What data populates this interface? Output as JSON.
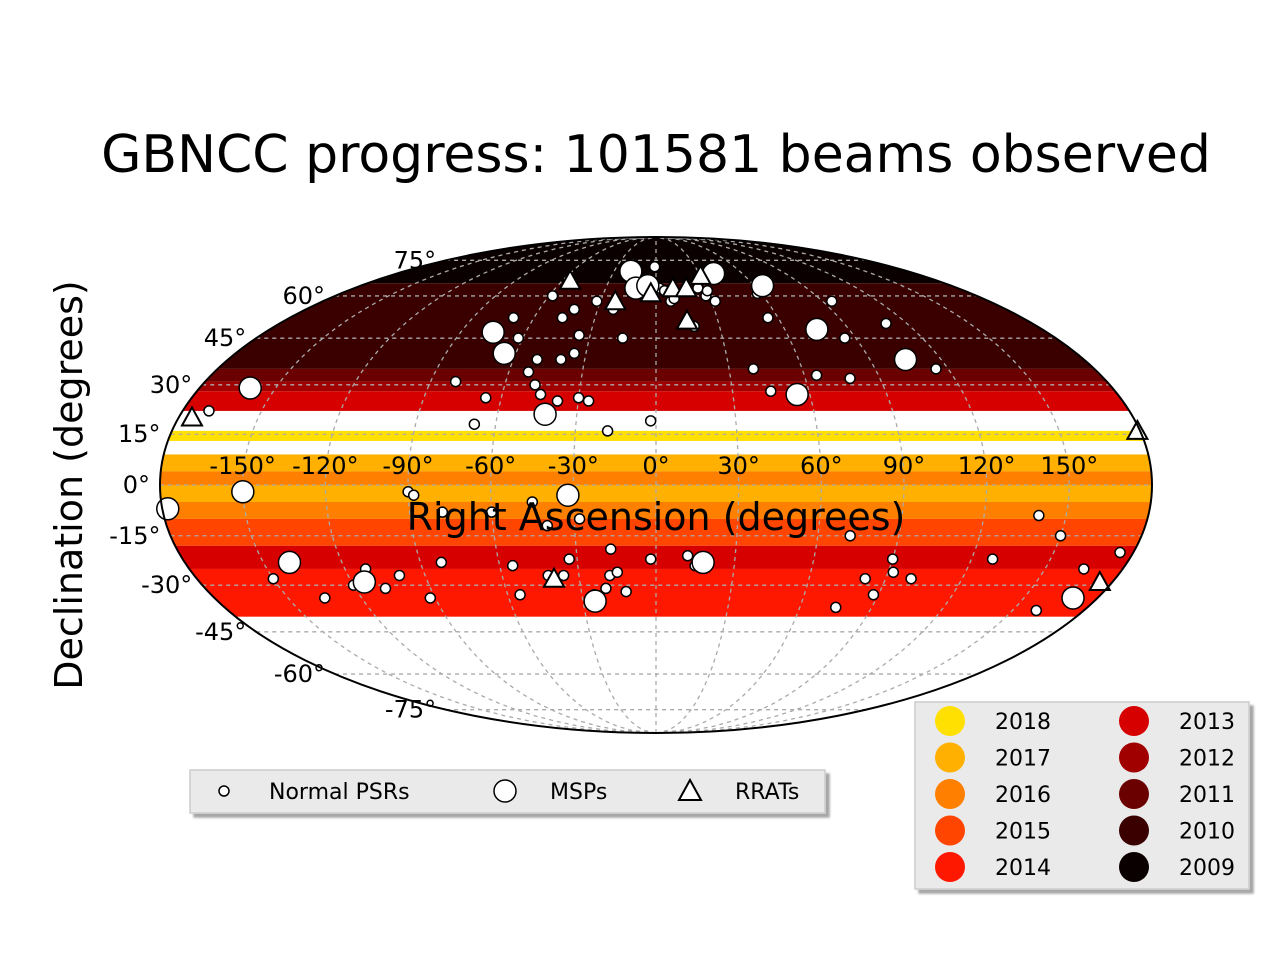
{
  "chart_data": {
    "type": "scatter",
    "projection": "mollweide",
    "title": "GBNCC progress: 101581 beams observed",
    "xlabel": "Right Ascension (degrees)",
    "ylabel": "Declination (degrees)",
    "grid": true,
    "ra_ticks": [
      "-150°",
      "-120°",
      "-90°",
      "-60°",
      "-30°",
      "0°",
      "30°",
      "60°",
      "90°",
      "120°",
      "150°"
    ],
    "dec_ticks": [
      "75°",
      "60°",
      "45°",
      "30°",
      "15°",
      "0°",
      "-15°",
      "-30°",
      "-45°",
      "-60°",
      "-75°"
    ],
    "coverage": {
      "legend_position": "lower-right",
      "years": [
        {
          "label": "2018",
          "color": "#ffe000"
        },
        {
          "label": "2017",
          "color": "#ffb000"
        },
        {
          "label": "2016",
          "color": "#ff8000"
        },
        {
          "label": "2015",
          "color": "#ff4500"
        },
        {
          "label": "2014",
          "color": "#ff1800"
        },
        {
          "label": "2013",
          "color": "#d70000"
        },
        {
          "label": "2012",
          "color": "#a00000"
        },
        {
          "label": "2011",
          "color": "#6a0000"
        },
        {
          "label": "2010",
          "color": "#3a0000"
        },
        {
          "label": "2009",
          "color": "#0a0000"
        }
      ],
      "bands": [
        {
          "dec": [
            65,
            90
          ],
          "year": "2009"
        },
        {
          "dec": [
            35,
            65
          ],
          "year": "2010"
        },
        {
          "dec": [
            31,
            35
          ],
          "year": "2011"
        },
        {
          "dec": [
            28,
            31
          ],
          "year": "2012"
        },
        {
          "dec": [
            22,
            28
          ],
          "year": "2013"
        },
        {
          "dec": [
            13,
            16
          ],
          "year": "2018"
        },
        {
          "dec": [
            4,
            9
          ],
          "year": "2017"
        },
        {
          "dec": [
            0,
            4
          ],
          "year": "2016"
        },
        {
          "dec": [
            -5,
            0
          ],
          "year": "2017"
        },
        {
          "dec": [
            -10,
            -5
          ],
          "year": "2016"
        },
        {
          "dec": [
            -18,
            -10
          ],
          "year": "2015"
        },
        {
          "dec": [
            -25,
            -18
          ],
          "year": "2013"
        },
        {
          "dec": [
            -40,
            -25
          ],
          "year": "2014"
        }
      ]
    },
    "sources": {
      "legend_position": "lower-left",
      "series": [
        {
          "name": "Normal PSRs",
          "marker": "small-circle",
          "points": [
            [
              -170,
              22
            ],
            [
              -150,
              -28
            ],
            [
              -135,
              -34
            ],
            [
              -120,
              -30
            ],
            [
              -112,
              -25
            ],
            [
              -108,
              -31
            ],
            [
              -100,
              -27
            ],
            [
              -92,
              -34
            ],
            [
              -90,
              -2
            ],
            [
              -88,
              -3
            ],
            [
              -82,
              -23
            ],
            [
              -80,
              31
            ],
            [
              -78,
              -8
            ],
            [
              -70,
              52
            ],
            [
              -68,
              18
            ],
            [
              -66,
              26
            ],
            [
              -62,
              45
            ],
            [
              -60,
              -8
            ],
            [
              -58,
              60
            ],
            [
              -55,
              -24
            ],
            [
              -55,
              -33
            ],
            [
              -52,
              34
            ],
            [
              -50,
              38
            ],
            [
              -48,
              30
            ],
            [
              -46,
              52
            ],
            [
              -45,
              -5
            ],
            [
              -45,
              27
            ],
            [
              -42,
              -27
            ],
            [
              -42,
              55
            ],
            [
              -40,
              -12
            ],
            [
              -40,
              38
            ],
            [
              -38,
              25
            ],
            [
              -36,
              -27
            ],
            [
              -35,
              46
            ],
            [
              -35,
              40
            ],
            [
              -33,
              -22
            ],
            [
              -32,
              58
            ],
            [
              -30,
              26
            ],
            [
              -28,
              -10
            ],
            [
              -26,
              25
            ],
            [
              -25,
              -33
            ],
            [
              -22,
              55
            ],
            [
              -20,
              -31
            ],
            [
              -18,
              -27
            ],
            [
              -18,
              16
            ],
            [
              -17,
              -19
            ],
            [
              -15,
              -26
            ],
            [
              -15,
              45
            ],
            [
              -12,
              -32
            ],
            [
              -12,
              63
            ],
            [
              -10,
              62
            ],
            [
              -8,
              61
            ],
            [
              -5,
              60
            ],
            [
              -2,
              19
            ],
            [
              -2,
              -22
            ],
            [
              -1,
              72
            ],
            [
              0,
              62
            ],
            [
              2,
              63
            ],
            [
              5,
              62
            ],
            [
              8,
              58
            ],
            [
              10,
              59
            ],
            [
              12,
              -21
            ],
            [
              15,
              -24
            ],
            [
              18,
              49
            ],
            [
              25,
              63
            ],
            [
              28,
              60
            ],
            [
              30,
              62
            ],
            [
              32,
              58
            ],
            [
              40,
              35
            ],
            [
              45,
              28
            ],
            [
              55,
              52
            ],
            [
              58,
              61
            ],
            [
              65,
              33
            ],
            [
              72,
              -15
            ],
            [
              75,
              -37
            ],
            [
              78,
              32
            ],
            [
              82,
              -28
            ],
            [
              85,
              45
            ],
            [
              88,
              -33
            ],
            [
              90,
              -22
            ],
            [
              92,
              -26
            ],
            [
              95,
              58
            ],
            [
              100,
              -28
            ],
            [
              110,
              50
            ],
            [
              115,
              35
            ],
            [
              128,
              -22
            ],
            [
              140,
              -9
            ],
            [
              150,
              -15
            ],
            [
              160,
              -38
            ],
            [
              165,
              -25
            ],
            [
              175,
              -20
            ]
          ]
        },
        {
          "name": "MSPs",
          "marker": "large-circle",
          "points": [
            [
              -178,
              -7
            ],
            [
              -160,
              29
            ],
            [
              -150,
              -2
            ],
            [
              -140,
              -23
            ],
            [
              -115,
              -29
            ],
            [
              -75,
              47
            ],
            [
              -65,
              40
            ],
            [
              -42,
              21
            ],
            [
              -32,
              -3
            ],
            [
              -25,
              -35
            ],
            [
              -18,
              70
            ],
            [
              -12,
              63
            ],
            [
              -5,
              64
            ],
            [
              18,
              -23
            ],
            [
              40,
              69
            ],
            [
              55,
              27
            ],
            [
              65,
              64
            ],
            [
              75,
              48
            ],
            [
              105,
              38
            ],
            [
              170,
              -34
            ]
          ]
        },
        {
          "name": "RRATs",
          "marker": "triangle",
          "points": [
            [
              -175,
              20
            ],
            [
              -55,
              66
            ],
            [
              -40,
              -28
            ],
            [
              -22,
              58
            ],
            [
              -3,
              61
            ],
            [
              10,
              63
            ],
            [
              15,
              51
            ],
            [
              18,
              63
            ],
            [
              30,
              68
            ],
            [
              175,
              -29
            ],
            [
              179,
              16
            ]
          ]
        }
      ]
    }
  }
}
